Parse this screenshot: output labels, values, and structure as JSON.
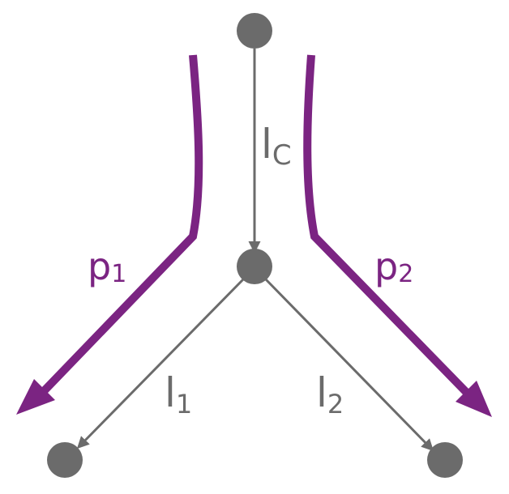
{
  "colors": {
    "node": "#6b6b6b",
    "link": "#6b6b6b",
    "path": "#7b2482",
    "background": "#ffffff"
  },
  "links": [
    {
      "id": "lc",
      "main": "l",
      "sub": "C"
    },
    {
      "id": "l1",
      "main": "l",
      "sub": "1"
    },
    {
      "id": "l2",
      "main": "l",
      "sub": "2"
    }
  ],
  "paths": [
    {
      "id": "p1",
      "main": "p",
      "sub": "1"
    },
    {
      "id": "p2",
      "main": "p",
      "sub": "2"
    }
  ]
}
